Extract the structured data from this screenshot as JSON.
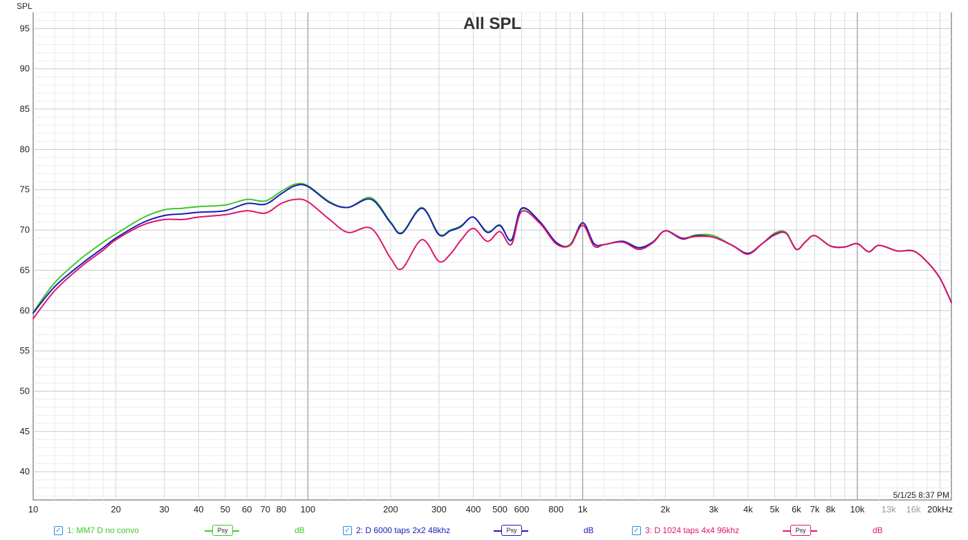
{
  "chart_data": {
    "type": "line",
    "title": "All SPL",
    "ylabel": "SPL",
    "xlabel": "",
    "x_scale": "log",
    "xlim": [
      10,
      22000
    ],
    "ylim": [
      36.5,
      97
    ],
    "grid": true,
    "x_ticks": [
      {
        "value": 10,
        "label": "10"
      },
      {
        "value": 20,
        "label": "20"
      },
      {
        "value": 30,
        "label": "30"
      },
      {
        "value": 40,
        "label": "40"
      },
      {
        "value": 50,
        "label": "50"
      },
      {
        "value": 60,
        "label": "60"
      },
      {
        "value": 70,
        "label": "70"
      },
      {
        "value": 80,
        "label": "80"
      },
      {
        "value": 100,
        "label": "100"
      },
      {
        "value": 200,
        "label": "200"
      },
      {
        "value": 300,
        "label": "300"
      },
      {
        "value": 400,
        "label": "400"
      },
      {
        "value": 500,
        "label": "500"
      },
      {
        "value": 600,
        "label": "600"
      },
      {
        "value": 800,
        "label": "800"
      },
      {
        "value": 1000,
        "label": "1k"
      },
      {
        "value": 2000,
        "label": "2k"
      },
      {
        "value": 3000,
        "label": "3k"
      },
      {
        "value": 4000,
        "label": "4k"
      },
      {
        "value": 5000,
        "label": "5k"
      },
      {
        "value": 6000,
        "label": "6k"
      },
      {
        "value": 7000,
        "label": "7k"
      },
      {
        "value": 8000,
        "label": "8k"
      },
      {
        "value": 10000,
        "label": "10k"
      },
      {
        "value": 13000,
        "label": "13k",
        "muted": true
      },
      {
        "value": 16000,
        "label": "16k",
        "muted": true
      },
      {
        "value": 20000,
        "label": "20kHz"
      }
    ],
    "y_ticks": [
      40,
      45,
      50,
      55,
      60,
      65,
      70,
      75,
      80,
      85,
      90,
      95
    ],
    "series": [
      {
        "name": "1: MM7 D no convo",
        "color": "#3ec82a",
        "x": [
          10,
          12,
          15,
          18,
          20,
          25,
          30,
          35,
          40,
          50,
          60,
          70,
          80,
          90,
          100,
          120,
          140,
          170,
          200,
          220,
          260,
          300,
          330,
          360,
          400,
          450,
          500,
          550,
          600,
          700,
          800,
          900,
          1000,
          1100,
          1200,
          1400,
          1600,
          1800,
          2000,
          2300,
          2600,
          3000,
          3500,
          4000,
          4500,
          5000,
          5500,
          6000,
          6500,
          7000,
          8000,
          9000,
          10000,
          11000,
          12000,
          14000,
          16000,
          18000,
          20000,
          22000
        ],
        "y": [
          59.8,
          63.5,
          66.5,
          68.5,
          69.5,
          71.5,
          72.5,
          72.7,
          72.9,
          73.1,
          73.8,
          73.6,
          74.8,
          75.7,
          75.5,
          73.5,
          72.8,
          74.0,
          71.0,
          69.7,
          72.8,
          69.5,
          70.0,
          70.5,
          71.6,
          69.8,
          70.5,
          68.8,
          72.6,
          71.0,
          68.4,
          68.2,
          70.9,
          68.3,
          68.2,
          68.6,
          67.8,
          68.5,
          69.9,
          69.0,
          69.4,
          69.3,
          68.1,
          67.1,
          68.3,
          69.6,
          69.7,
          67.6,
          68.6,
          69.3,
          68.0,
          67.9,
          68.3,
          67.3,
          68.1,
          67.4,
          67.4,
          66.0,
          64.0,
          61.0
        ]
      },
      {
        "name": "2: D 6000 taps 2x2 48khz",
        "color": "#1a1ab8",
        "x": [
          10,
          12,
          15,
          18,
          20,
          25,
          30,
          35,
          40,
          50,
          60,
          70,
          80,
          90,
          100,
          120,
          140,
          170,
          200,
          220,
          260,
          300,
          330,
          360,
          400,
          450,
          500,
          550,
          600,
          700,
          800,
          900,
          1000,
          1100,
          1200,
          1400,
          1600,
          1800,
          2000,
          2300,
          2600,
          3000,
          3500,
          4000,
          4500,
          5000,
          5500,
          6000,
          6500,
          7000,
          8000,
          9000,
          10000,
          11000,
          12000,
          14000,
          16000,
          18000,
          20000,
          22000
        ],
        "y": [
          59.7,
          63.0,
          65.8,
          67.8,
          69.0,
          70.9,
          71.8,
          72.0,
          72.2,
          72.4,
          73.3,
          73.2,
          74.5,
          75.5,
          75.4,
          73.4,
          72.8,
          73.8,
          70.9,
          69.6,
          72.7,
          69.4,
          69.9,
          70.4,
          71.6,
          69.7,
          70.6,
          68.7,
          72.7,
          71.0,
          68.5,
          68.1,
          70.9,
          68.3,
          68.2,
          68.6,
          67.8,
          68.5,
          69.9,
          68.9,
          69.3,
          69.1,
          68.1,
          67.1,
          68.3,
          69.4,
          69.6,
          67.6,
          68.6,
          69.3,
          68.0,
          67.9,
          68.3,
          67.3,
          68.1,
          67.4,
          67.4,
          66.0,
          64.0,
          61.0
        ]
      },
      {
        "name": "3: D 1024 taps 4x4 96khz",
        "color": "#e0146c",
        "x": [
          10,
          12,
          15,
          18,
          20,
          25,
          30,
          35,
          40,
          50,
          60,
          70,
          80,
          90,
          100,
          120,
          140,
          170,
          200,
          220,
          260,
          300,
          330,
          360,
          400,
          450,
          500,
          550,
          600,
          700,
          800,
          900,
          1000,
          1100,
          1200,
          1400,
          1600,
          1800,
          2000,
          2300,
          2600,
          3000,
          3500,
          4000,
          4500,
          5000,
          5500,
          6000,
          6500,
          7000,
          8000,
          9000,
          10000,
          11000,
          12000,
          14000,
          16000,
          18000,
          20000,
          22000
        ],
        "y": [
          59.0,
          62.5,
          65.5,
          67.5,
          68.8,
          70.6,
          71.3,
          71.3,
          71.6,
          71.9,
          72.4,
          72.1,
          73.3,
          73.8,
          73.5,
          71.3,
          69.7,
          70.2,
          66.5,
          65.2,
          68.8,
          66.1,
          67.0,
          68.7,
          70.2,
          68.6,
          69.8,
          68.2,
          72.3,
          70.8,
          68.3,
          68.1,
          70.6,
          68.0,
          68.2,
          68.5,
          67.6,
          68.4,
          69.9,
          69.0,
          69.2,
          69.1,
          68.1,
          67.0,
          68.3,
          69.5,
          69.6,
          67.6,
          68.6,
          69.3,
          68.0,
          67.9,
          68.3,
          67.3,
          68.1,
          67.4,
          67.4,
          66.0,
          64.0,
          61.0
        ]
      }
    ]
  },
  "timestamp": "5/1/25 8:37 PM",
  "legend": [
    {
      "label": "1: MM7 D no convo",
      "psy": "Psy",
      "unit": "dB",
      "color": "#3ec82a",
      "checked": "✓"
    },
    {
      "label": "2: D 6000 taps 2x2 48khz",
      "psy": "Psy",
      "unit": "dB",
      "color": "#1a1ab8",
      "checked": "✓"
    },
    {
      "label": "3: D 1024 taps 4x4 96khz",
      "psy": "Psy",
      "unit": "dB",
      "color": "#e0146c",
      "checked": "✓"
    }
  ]
}
